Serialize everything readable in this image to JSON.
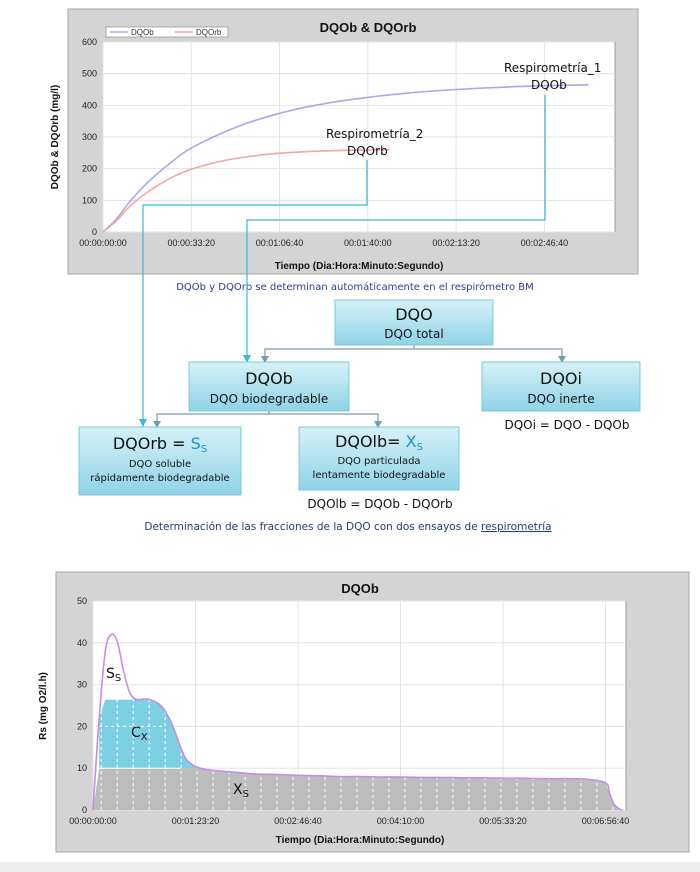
{
  "chart_data": [
    {
      "type": "line",
      "title": "DQOb & DQOrb",
      "xlabel": "Tiempo (Dia:Hora:Minuto:Segundo)",
      "ylabel": "DQOb & DQOrb (mg/l)",
      "xlim": [
        0,
        11600
      ],
      "ylim": [
        0,
        600
      ],
      "x_tick_labels": [
        "00:00:00:00",
        "00:00:33:20",
        "00:01:06:40",
        "00:01:40:00",
        "00:02:13:20",
        "00:02:46:40"
      ],
      "x_tick_values": [
        0,
        2000,
        4000,
        6000,
        8000,
        10000
      ],
      "y_ticks": [
        0,
        100,
        200,
        300,
        400,
        500,
        600
      ],
      "grid": true,
      "legend": "top-left",
      "x_units": "seconds",
      "series": [
        {
          "name": "DQOb",
          "color": "#a8a8ec",
          "x": [
            0,
            300,
            600,
            1000,
            1500,
            2000,
            3000,
            4000,
            5000,
            6000,
            7000,
            8000,
            9000,
            10000,
            11000
          ],
          "values": [
            0,
            40,
            95,
            155,
            215,
            265,
            330,
            375,
            405,
            425,
            440,
            450,
            457,
            462,
            465
          ]
        },
        {
          "name": "DQOrb",
          "color": "#f2a6a6",
          "x": [
            0,
            300,
            600,
            1000,
            1500,
            2000,
            2500,
            3000,
            3500,
            4000,
            4500,
            5000,
            5500,
            6000,
            6500
          ],
          "values": [
            0,
            35,
            80,
            125,
            168,
            198,
            218,
            232,
            242,
            249,
            253,
            256,
            258,
            259,
            260
          ]
        }
      ],
      "annotations": [
        {
          "text": "Respirometría_1",
          "sub": "DQOb"
        },
        {
          "text": "Respirometría_2",
          "sub": "DQOrb"
        }
      ]
    },
    {
      "type": "area",
      "title": "DQOb",
      "xlabel": "Tiempo (Dia:Hora:Minuto:Segundo)",
      "ylabel": "Rs (mg O2/l.h)",
      "xlim": [
        0,
        26000
      ],
      "ylim": [
        0,
        50
      ],
      "x_tick_labels": [
        "00:00:00:00",
        "00:01:23:20",
        "00:02:46:40",
        "00:04:10:00",
        "00:05:33:20",
        "00:06:56:40"
      ],
      "x_tick_values": [
        0,
        5000,
        10000,
        15000,
        20000,
        25000
      ],
      "y_ticks": [
        0,
        10,
        20,
        30,
        40,
        50
      ],
      "grid": true,
      "x_units": "seconds",
      "series": [
        {
          "name": "Rs",
          "color": "#c58ee0",
          "x": [
            0,
            300,
            600,
            900,
            1200,
            1500,
            1800,
            2100,
            2400,
            2700,
            3000,
            3300,
            3600,
            3900,
            4200,
            4500,
            4800,
            5100,
            5400,
            6000,
            7000,
            8000,
            9000,
            10000,
            11000,
            12000,
            13000,
            14000,
            15000,
            16000,
            17000,
            18000,
            19000,
            20000,
            21000,
            22000,
            23000,
            24000,
            25000,
            25200,
            25400,
            25600,
            25800
          ],
          "values": [
            0,
            22,
            38,
            42,
            40,
            33,
            28,
            26.5,
            26.5,
            26.5,
            26,
            25,
            23,
            20,
            16,
            12.5,
            11,
            10.2,
            9.8,
            9.4,
            9,
            8.6,
            8.5,
            8.3,
            8.2,
            8,
            8,
            7.9,
            7.9,
            7.8,
            7.8,
            7.7,
            7.7,
            7.6,
            7.6,
            7.5,
            7.5,
            7.4,
            6.5,
            4,
            1.5,
            0.5,
            0
          ]
        }
      ],
      "fractions": {
        "Ss_label": "S",
        "Ss_sub": "S",
        "Cx_label": "C",
        "Cx_sub": "X",
        "Xs_label": "X",
        "Xs_sub": "S",
        "Cx_top": 26.5,
        "Xs_top": 10
      },
      "colors": {
        "cx_fill": "#7dd0e3",
        "xs_fill": "#bdbdbd"
      }
    }
  ],
  "diagram": {
    "caption_top": "DQOb y DQOrb  se determinan automáticamente en el respirómetro BM",
    "boxes": {
      "dqo": {
        "title": "DQO",
        "sub": "DQO total"
      },
      "dqob": {
        "title": "DQOb",
        "sub": "DQO biodegradable"
      },
      "dqoi": {
        "title": "DQOi",
        "sub": "DQO inerte"
      },
      "dqorb": {
        "title": "DQOrb",
        "eq": " = ",
        "sym": "S",
        "sym_sub": "S",
        "line1": "DQO soluble",
        "line2": "rápidamente biodegradable"
      },
      "dqolb": {
        "title": "DQOlb",
        "eq": "= ",
        "sym": "X",
        "sym_sub": "S",
        "line1": "DQO particulada",
        "line2": "lentamente biodegradable"
      }
    },
    "formula_dqoi": "DQOi = DQO - DQOb",
    "formula_dqolb": "DQOlb = DQOb - DQOrb",
    "caption_bottom_main": "Determinación de las fracciones de la DQO con dos ensayos de ",
    "caption_bottom_word": "respirometría"
  }
}
